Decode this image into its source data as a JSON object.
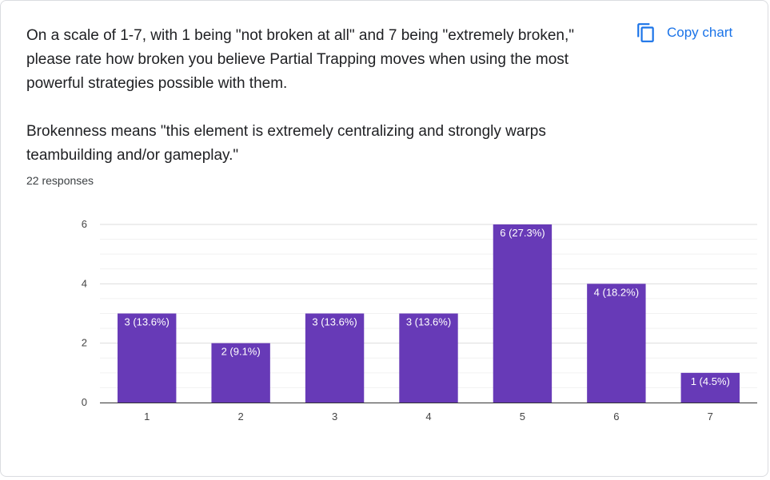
{
  "question": {
    "text": "On a scale of 1-7, with 1 being \"not broken at all\" and 7 being \"extremely broken,\" please rate how broken you believe Partial Trapping moves when using the most powerful strategies possible with them.\n\nBrokenness means \"this element is extremely centralizing and strongly warps teambuilding and/or gameplay.\""
  },
  "responses_label": "22 responses",
  "copy_chart": {
    "label": "Copy chart",
    "icon": "copy-icon"
  },
  "colors": {
    "bar": "#673ab7",
    "accent": "#1a73e8",
    "grid": "#e8e8e8",
    "axis": "#333333"
  },
  "chart_data": {
    "type": "bar",
    "categories": [
      "1",
      "2",
      "3",
      "4",
      "5",
      "6",
      "7"
    ],
    "values": [
      3,
      2,
      3,
      3,
      6,
      4,
      1
    ],
    "data_labels": [
      "3 (13.6%)",
      "2 (9.1%)",
      "3 (13.6%)",
      "3 (13.6%)",
      "6 (27.3%)",
      "4 (18.2%)",
      "1 (4.5%)"
    ],
    "yticks": [
      "0",
      "2",
      "4",
      "6"
    ],
    "ylim": [
      0,
      6
    ],
    "title": "",
    "xlabel": "",
    "ylabel": "",
    "grid": true
  }
}
